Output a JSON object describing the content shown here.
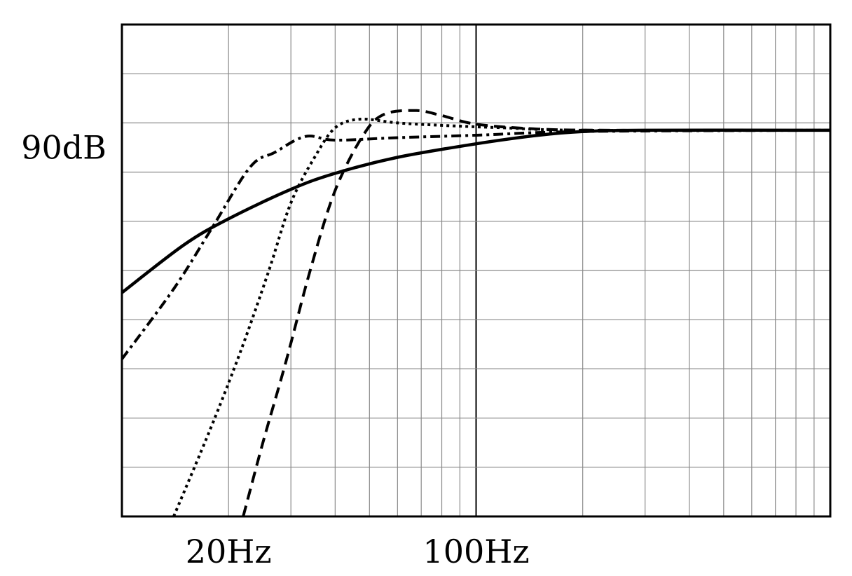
{
  "chart_data": {
    "type": "line",
    "x_scale": "log",
    "xlim_hz": [
      10,
      1000
    ],
    "ylim_db": [
      60,
      100
    ],
    "grid": true,
    "x_tick_labels": [
      {
        "value": 20,
        "label": "20Hz"
      },
      {
        "value": 100,
        "label": "100Hz"
      }
    ],
    "y_tick_labels": [
      {
        "value": 90,
        "label": "90dB"
      }
    ],
    "series": [
      {
        "style": "solid",
        "points": [
          [
            10,
            78.2
          ],
          [
            15,
            82.1
          ],
          [
            20,
            84.2
          ],
          [
            30,
            86.6
          ],
          [
            40,
            87.9
          ],
          [
            60,
            89.2
          ],
          [
            100,
            90.3
          ],
          [
            150,
            91.0
          ],
          [
            200,
            91.3
          ],
          [
            300,
            91.4
          ],
          [
            1000,
            91.4
          ]
        ]
      },
      {
        "style": "dashdot",
        "points": [
          [
            10,
            72.8
          ],
          [
            14,
            78.5
          ],
          [
            18,
            83.5
          ],
          [
            23,
            88.4
          ],
          [
            27,
            89.6
          ],
          [
            33,
            90.9
          ],
          [
            40,
            90.6
          ],
          [
            60,
            90.8
          ],
          [
            100,
            91.0
          ],
          [
            200,
            91.3
          ],
          [
            1000,
            91.4
          ]
        ]
      },
      {
        "style": "dotted",
        "points": [
          [
            14,
            60
          ],
          [
            18,
            67.5
          ],
          [
            22,
            74
          ],
          [
            26,
            80
          ],
          [
            30,
            85.5
          ],
          [
            35,
            89.2
          ],
          [
            40,
            91.6
          ],
          [
            47,
            92.3
          ],
          [
            60,
            92.0
          ],
          [
            80,
            91.8
          ],
          [
            120,
            91.6
          ],
          [
            200,
            91.4
          ],
          [
            1000,
            91.4
          ]
        ]
      },
      {
        "style": "dashed",
        "points": [
          [
            22,
            60
          ],
          [
            25,
            66
          ],
          [
            29,
            72.5
          ],
          [
            34,
            80
          ],
          [
            40,
            86.5
          ],
          [
            48,
            91
          ],
          [
            55,
            92.7
          ],
          [
            68,
            93.0
          ],
          [
            80,
            92.6
          ],
          [
            100,
            91.9
          ],
          [
            150,
            91.5
          ],
          [
            250,
            91.4
          ],
          [
            1000,
            91.4
          ]
        ]
      }
    ]
  }
}
